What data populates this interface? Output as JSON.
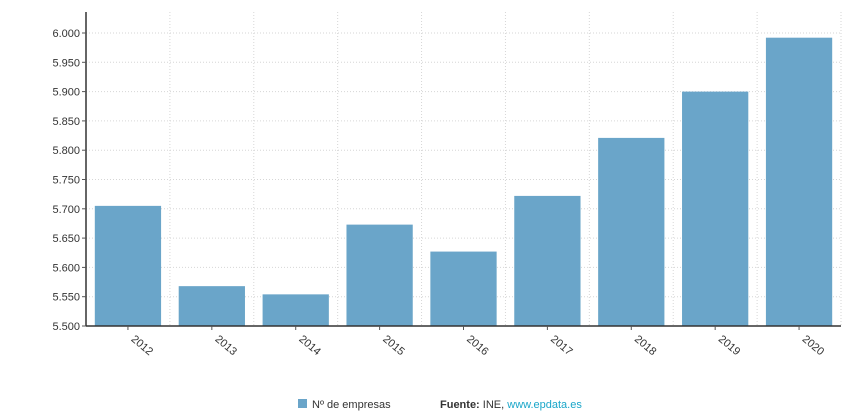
{
  "chart_data": {
    "type": "bar",
    "categories": [
      "2012",
      "2013",
      "2014",
      "2015",
      "2016",
      "2017",
      "2018",
      "2019",
      "2020"
    ],
    "series": [
      {
        "name": "Nº de empresas",
        "values": [
          5705,
          5568,
          5554,
          5673,
          5627,
          5722,
          5821,
          5900,
          5992
        ],
        "color": "#6aa5c9"
      }
    ],
    "ylim": [
      5500,
      6000
    ],
    "yticks": [
      5500,
      5550,
      5600,
      5650,
      5700,
      5750,
      5800,
      5850,
      5900,
      5950,
      6000
    ],
    "ytick_labels": [
      "5.500",
      "5.550",
      "5.600",
      "5.650",
      "5.700",
      "5.750",
      "5.800",
      "5.850",
      "5.900",
      "5.950",
      "6.000"
    ],
    "grid": true,
    "title": "",
    "xlabel": "",
    "ylabel": "",
    "legend_position": "bottom-center",
    "source": {
      "label": "Fuente:",
      "text": " INE, ",
      "link": "www.epdata.es"
    }
  }
}
